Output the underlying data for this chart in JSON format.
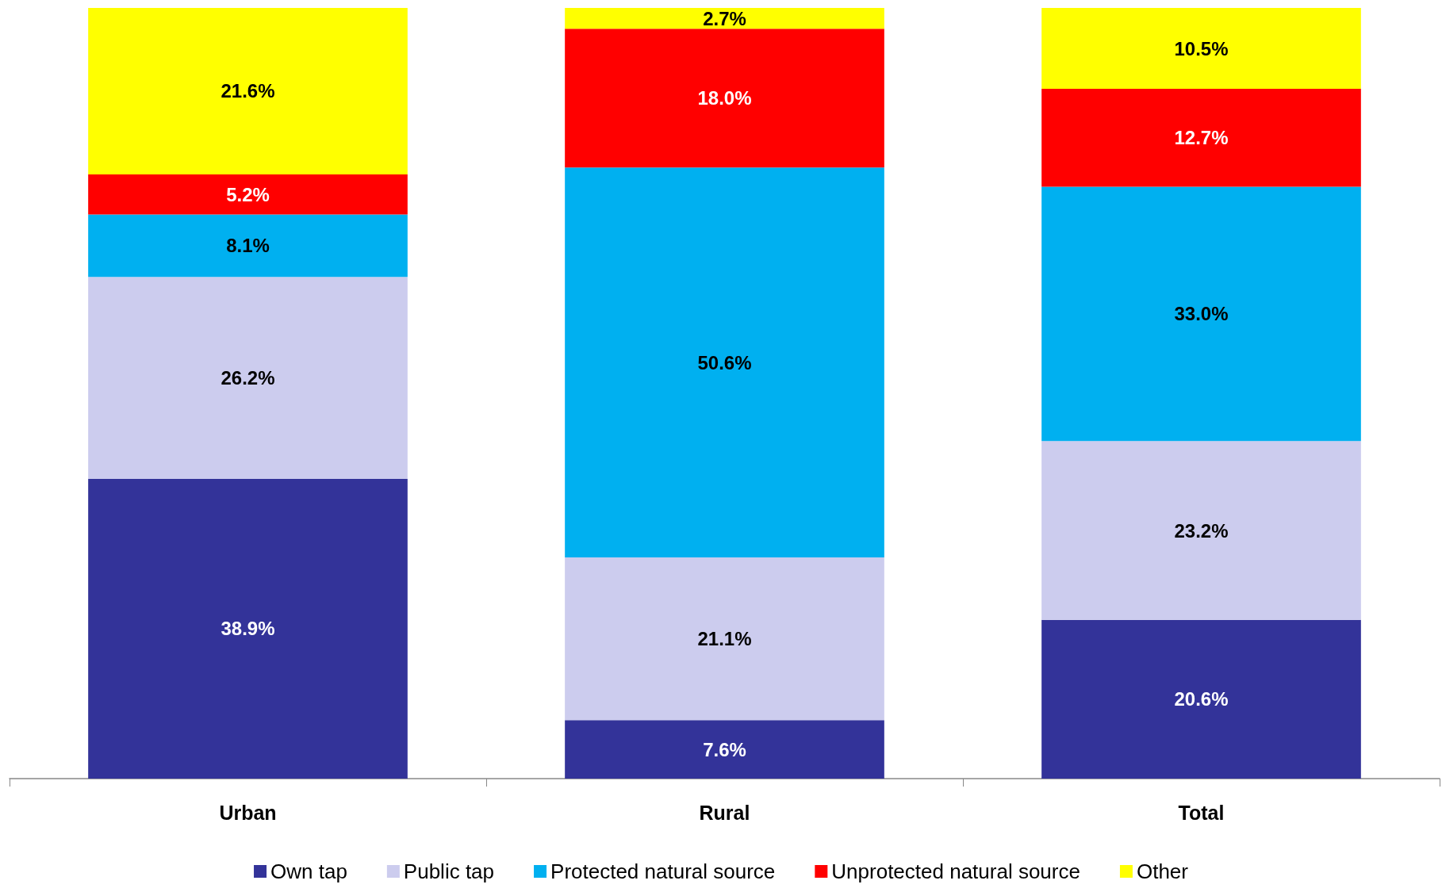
{
  "chart_data": {
    "type": "bar",
    "stacked": true,
    "categories": [
      "Urban",
      "Rural",
      "Total"
    ],
    "legend": "bottom",
    "series": [
      {
        "name": "Own tap",
        "color": "#333399",
        "values": [
          38.9,
          7.6,
          20.6
        ],
        "value_labels": [
          "38.9%",
          "7.6%",
          "20.6%"
        ]
      },
      {
        "name": "Public tap",
        "color": "#ccccee",
        "values": [
          26.2,
          21.1,
          23.2
        ],
        "value_labels": [
          "26.2%",
          "21.1%",
          "23.2%"
        ]
      },
      {
        "name": "Protected natural source",
        "color": "#00b0f0",
        "values": [
          8.1,
          50.6,
          33.0
        ],
        "value_labels": [
          "8.1%",
          "50.6%",
          "33.0%"
        ]
      },
      {
        "name": "Unprotected natural source",
        "color": "#ff0000",
        "values": [
          5.2,
          18.0,
          12.7
        ],
        "value_labels": [
          "5.2%",
          "18.0%",
          "12.7%"
        ]
      },
      {
        "name": "Other",
        "color": "#ffff00",
        "values": [
          21.6,
          2.7,
          10.5
        ],
        "value_labels": [
          "21.6%",
          "2.7%",
          "10.5%"
        ]
      }
    ]
  }
}
